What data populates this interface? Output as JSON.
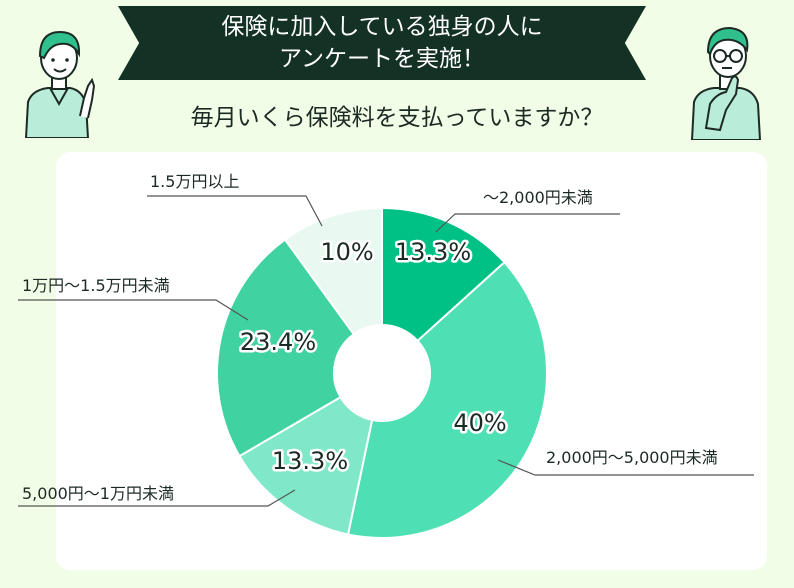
{
  "banner": {
    "line1": "保険に加入している独身の人に",
    "line2": "アンケートを実施！"
  },
  "question": "毎月いくら保険料を支払っていますか？",
  "chart_data": {
    "type": "pie",
    "donut": true,
    "start_angle_deg": 0,
    "direction": "clockwise",
    "categories": [
      "～2,000円未満",
      "2,000円～5,000円未満",
      "5,000円～1万円未満",
      "1万円～1.5万円未満",
      "1.5万円以上"
    ],
    "values": [
      13.3,
      40,
      13.3,
      23.4,
      10
    ],
    "labels": [
      "13.3%",
      "40%",
      "13.3%",
      "23.4%",
      "10%"
    ],
    "colors": [
      "#00c185",
      "#4ee0b4",
      "#7fe8c8",
      "#40d3a1",
      "#e9f8f1"
    ]
  },
  "colors": {
    "background": "#f1fde6",
    "banner": "#143126",
    "panel": "#ffffff",
    "leader_line": "#555555"
  },
  "icons": {
    "left_person": "pointing-person-icon",
    "right_person": "thinking-person-icon"
  }
}
